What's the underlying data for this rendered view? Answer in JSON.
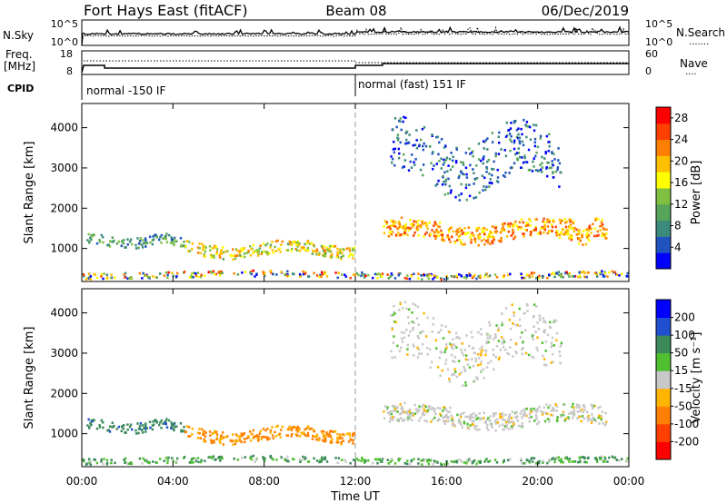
{
  "header": {
    "station": "Fort Hays East (fitACF)",
    "beam": "Beam 08",
    "date": "06/Dec/2019"
  },
  "top_panel": {
    "left_label": "N.Sky",
    "right_label": "N.Search",
    "right_legend": ".......",
    "left_ticks": [
      "10^5",
      "10^0"
    ],
    "right_ticks": [
      "10^5",
      "10^0"
    ]
  },
  "freq_panel": {
    "left_label_line1": "Freq.",
    "left_label_line2": "[MHz]",
    "right_label": "Nave",
    "right_legend": "....",
    "left_ticks": [
      "18",
      "8"
    ],
    "right_ticks": [
      "60",
      "0"
    ]
  },
  "cpid": {
    "label": "CPID",
    "segments": [
      {
        "text": "normal -150 IF",
        "start_hour": 0
      },
      {
        "text": "normal (fast) 151 IF",
        "start_hour": 12
      }
    ]
  },
  "chart_data": [
    {
      "type": "heatmap",
      "quantity": "power",
      "ylabel": "Slant Range [km]",
      "ylim": [
        180,
        4600
      ],
      "yticks": [
        1000,
        2000,
        3000,
        4000
      ],
      "xlim": [
        0,
        24
      ],
      "colorbar": {
        "label": "Power [dB]",
        "ticks": [
          "4",
          "8",
          "12",
          "16",
          "20",
          "24",
          "28"
        ],
        "colors": [
          "#0000ff",
          "#1f53bf",
          "#3b8a7c",
          "#57a55a",
          "#7fc042",
          "#ffff00",
          "#ffc000",
          "#ff8000",
          "#ff4000",
          "#ff0000"
        ]
      },
      "echo_regions": [
        {
          "desc": "ground scatter near range",
          "x": [
            0,
            24
          ],
          "y": [
            250,
            480
          ],
          "value": "mixed"
        },
        {
          "desc": "early band",
          "x": [
            0.2,
            4.5
          ],
          "y": [
            1000,
            1400
          ],
          "value": 10
        },
        {
          "desc": "evening band",
          "x": [
            4.5,
            12
          ],
          "y": [
            750,
            1250
          ],
          "value": 18
        },
        {
          "desc": "main arc",
          "x": [
            13.2,
            21.5
          ],
          "y": [
            1100,
            1800
          ],
          "value": 22
        },
        {
          "desc": "late arc",
          "x": [
            21,
            23
          ],
          "y": [
            1100,
            1800
          ],
          "value": 22
        },
        {
          "desc": "far range curtain",
          "x": [
            13.5,
            21
          ],
          "y": [
            2200,
            4300
          ],
          "value": 6
        }
      ]
    },
    {
      "type": "heatmap",
      "quantity": "velocity",
      "ylabel": "Slant Range [km]",
      "ylim": [
        180,
        4600
      ],
      "yticks": [
        1000,
        2000,
        3000,
        4000
      ],
      "xlim": [
        0,
        24
      ],
      "xlabel": "Time UT",
      "xticks": [
        "00:00",
        "04:00",
        "08:00",
        "12:00",
        "16:00",
        "20:00",
        "00:00"
      ],
      "colorbar": {
        "label": "Velocity [m s⁻¹]",
        "ticks": [
          "200",
          "100",
          "50",
          "15",
          "-15",
          "-50",
          "-100",
          "-200"
        ],
        "colors": [
          "#0000ff",
          "#2050d0",
          "#3c8a5a",
          "#50c030",
          "#c8c8c8",
          "#ffb400",
          "#ff8000",
          "#ff4000",
          "#ff0000"
        ]
      },
      "echo_regions": [
        {
          "desc": "near range low velocity",
          "x": [
            0,
            24
          ],
          "y": [
            250,
            480
          ],
          "value": 30
        },
        {
          "desc": "early band (positive)",
          "x": [
            0.2,
            4.5
          ],
          "y": [
            1000,
            1400
          ],
          "value": 60
        },
        {
          "desc": "evening band (negative)",
          "x": [
            4.5,
            12
          ],
          "y": [
            750,
            1250
          ],
          "value": -40
        },
        {
          "desc": "main arc ground scatter",
          "x": [
            13.2,
            23
          ],
          "y": [
            1100,
            1800
          ],
          "value": 0
        },
        {
          "desc": "far range",
          "x": [
            13.5,
            21
          ],
          "y": [
            2200,
            4300
          ],
          "value": 0
        }
      ]
    }
  ]
}
